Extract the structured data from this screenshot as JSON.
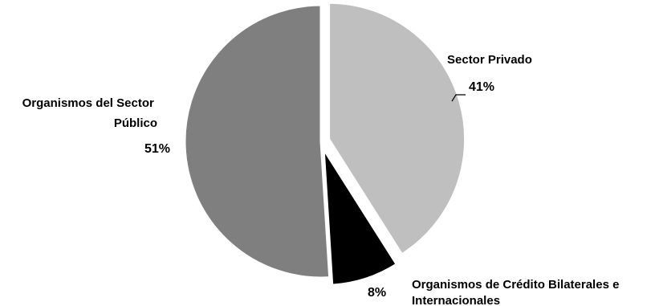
{
  "chart_data": {
    "type": "pie",
    "title": "",
    "start_angle_deg": 0,
    "direction": "clockwise",
    "slices": [
      {
        "name_lines": [
          "Sector Privado"
        ],
        "value": 41,
        "label": "41%",
        "color": "#bfbfbf",
        "exploded": true
      },
      {
        "name_lines": [
          "Organismos de Crédito Bilaterales e",
          "Internacionales"
        ],
        "value": 8,
        "label": "8%",
        "color": "#000000",
        "exploded": true
      },
      {
        "name_lines": [
          "Organismos del Sector",
          "Público"
        ],
        "value": 51,
        "label": "51%",
        "color": "#7f7f7f",
        "exploded": false
      }
    ]
  }
}
